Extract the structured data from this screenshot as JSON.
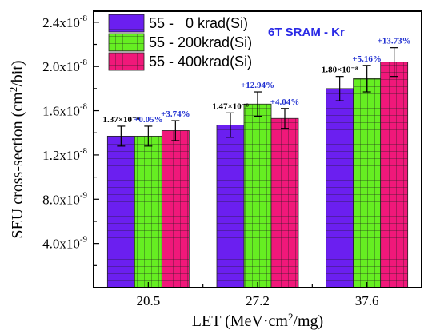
{
  "chart_data": {
    "type": "bar",
    "title": "6T SRAM - Kr",
    "xlabel": "LET (MeV·cm²/mg)",
    "xlabel_parts": {
      "pre": "LET (MeV·cm",
      "sup": "2",
      "post": "/mg)"
    },
    "ylabel": "SEU cross-section (cm²/bit)",
    "ylabel_parts": {
      "pre": "SEU cross-section (cm",
      "sup": "2",
      "post": "/bit)"
    },
    "ylim": [
      0,
      2.5e-08
    ],
    "y_ticks": [
      {
        "value": 4e-09,
        "mant": "4.0x10",
        "exp": "-9"
      },
      {
        "value": 8e-09,
        "mant": "8.0x10",
        "exp": "-9"
      },
      {
        "value": 1.2e-08,
        "mant": "1.2x10",
        "exp": "-8"
      },
      {
        "value": 1.6e-08,
        "mant": "1.6x10",
        "exp": "-8"
      },
      {
        "value": 2e-08,
        "mant": "2.0x10",
        "exp": "-8"
      },
      {
        "value": 2.4e-08,
        "mant": "2.4x10",
        "exp": "-8"
      }
    ],
    "categories": [
      "20.5",
      "27.2",
      "37.6"
    ],
    "legend_position": "top-left",
    "series": [
      {
        "name": "55 -   0 krad(Si)",
        "color": "#6b1ff0",
        "values": [
          1.37e-08,
          1.47e-08,
          1.8e-08
        ],
        "errors": [
          9e-10,
          1.1e-09,
          1.1e-09
        ]
      },
      {
        "name": "55 - 200krad(Si)",
        "color": "#66ee22",
        "values": [
          1.37e-08,
          1.66e-08,
          1.89e-08
        ],
        "errors": [
          9e-10,
          1.1e-09,
          1.2e-09
        ]
      },
      {
        "name": "55 - 400krad(Si)",
        "color": "#f0187a",
        "values": [
          1.42e-08,
          1.53e-08,
          2.04e-08
        ],
        "errors": [
          9e-10,
          9e-10,
          1.3e-09
        ]
      }
    ],
    "annotations": [
      {
        "category": 0,
        "series": 0,
        "text": "1.37×10⁻⁸",
        "color": "#000000"
      },
      {
        "category": 0,
        "series": 1,
        "text": "+0.05%",
        "color": "#1f2fd0"
      },
      {
        "category": 0,
        "series": 2,
        "text": "+3.74%",
        "color": "#1f2fd0"
      },
      {
        "category": 1,
        "series": 0,
        "text": "1.47×10⁻⁸",
        "color": "#000000"
      },
      {
        "category": 1,
        "series": 1,
        "text": "+12.94%",
        "color": "#1f2fd0"
      },
      {
        "category": 1,
        "series": 2,
        "text": "+4.04%",
        "color": "#1f2fd0"
      },
      {
        "category": 2,
        "series": 0,
        "text": "1.80×10⁻⁸",
        "color": "#000000"
      },
      {
        "category": 2,
        "series": 1,
        "text": "+5.16%",
        "color": "#1f2fd0"
      },
      {
        "category": 2,
        "series": 2,
        "text": "+13.73%",
        "color": "#1f2fd0"
      }
    ]
  }
}
